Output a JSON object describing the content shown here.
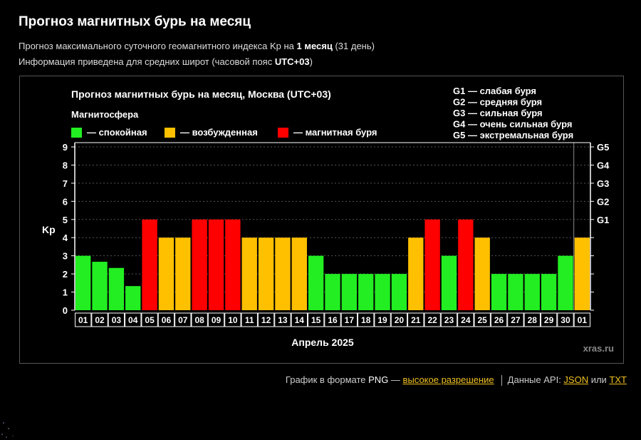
{
  "page": {
    "title": "Прогноз магнитных бурь на месяц",
    "desc1_pre": "Прогноз максимального суточного геомагнитного индекса Kp на ",
    "desc1_bold": "1 месяц",
    "desc1_post": " (31 день)",
    "desc2_pre": "Информация приведена для средних широт (часовой пояс ",
    "desc2_bold": "UTC+03",
    "desc2_post": ")"
  },
  "footer": {
    "graph_pre": "График в формате ",
    "png": "PNG",
    "dash": " — ",
    "hires_link": "высокое разрешение",
    "api_pre": "Данные API: ",
    "json_link": "JSON",
    "or": " или ",
    "txt_link": "TXT"
  },
  "chart_data": {
    "type": "bar",
    "title": "Прогноз магнитных бурь на месяц, Москва (UTC+03)",
    "legend_title": "Магнитосфера",
    "legend": [
      {
        "label": "— спокойная",
        "color": "#22ee22"
      },
      {
        "label": "— возбужденная",
        "color": "#ffc000"
      },
      {
        "label": "— магнитная буря",
        "color": "#ff0000"
      }
    ],
    "g_legend": [
      "G1 — слабая буря",
      "G2 — средняя буря",
      "G3 — сильная буря",
      "G4 — очень сильная буря",
      "G5 — экстремальная буря"
    ],
    "ylabel": "Kp",
    "xlabel": "Апрель 2025",
    "watermark": "xras.ru",
    "ylim": [
      0,
      9
    ],
    "yticks": [
      "0",
      "1",
      "2",
      "3",
      "4",
      "5",
      "6",
      "7",
      "8",
      "9"
    ],
    "g_ticks": [
      {
        "label": "G1",
        "value": 5
      },
      {
        "label": "G2",
        "value": 6
      },
      {
        "label": "G3",
        "value": 7
      },
      {
        "label": "G4",
        "value": 8
      },
      {
        "label": "G5",
        "value": 9
      }
    ],
    "categories": [
      "01",
      "02",
      "03",
      "04",
      "05",
      "06",
      "07",
      "08",
      "09",
      "10",
      "11",
      "12",
      "13",
      "14",
      "15",
      "16",
      "17",
      "18",
      "19",
      "20",
      "21",
      "22",
      "23",
      "24",
      "25",
      "26",
      "27",
      "28",
      "29",
      "30",
      "01"
    ],
    "values": [
      3,
      2.67,
      2.33,
      1.33,
      5,
      4,
      4,
      5,
      5,
      5,
      4,
      4,
      4,
      4,
      3,
      2,
      2,
      2,
      2,
      2,
      4,
      5,
      3,
      5,
      4,
      2,
      2,
      2,
      2,
      3,
      4
    ],
    "colors": {
      "quiet": "#22ee22",
      "active": "#ffc000",
      "storm": "#ff0000"
    },
    "grid": true
  }
}
